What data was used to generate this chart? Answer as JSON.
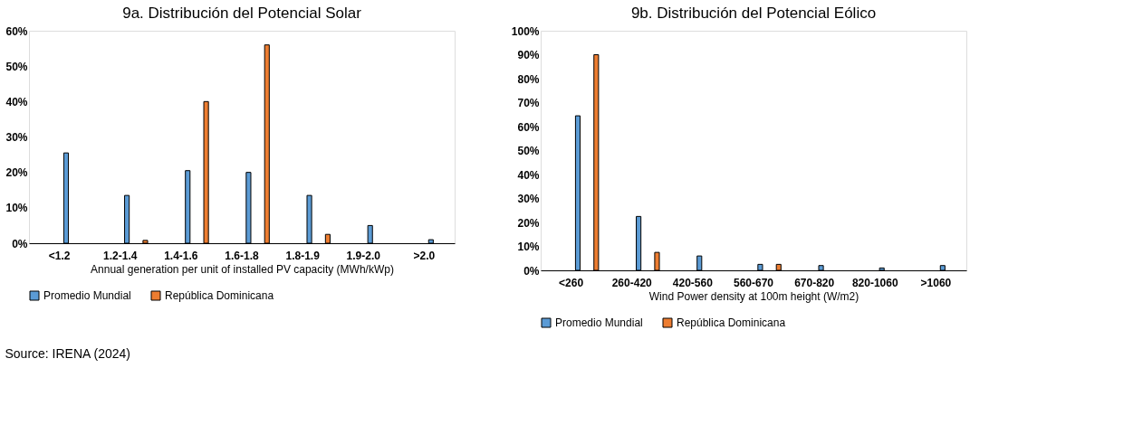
{
  "chart_data": [
    {
      "type": "bar",
      "title": "9a. Distribución del Potencial Solar",
      "xlabel": "Annual generation per unit of installed PV capacity (MWh/kWp)",
      "categories": [
        "<1.2",
        "1.2-1.4",
        "1.4-1.6",
        "1.6-1.8",
        "1.8-1.9",
        "1.9-2.0",
        ">2.0"
      ],
      "series": [
        {
          "name": "Promedio Mundial",
          "color": "#5b9bd5",
          "values": [
            25.5,
            13.5,
            20.5,
            20,
            13.5,
            5,
            1
          ]
        },
        {
          "name": "República Dominicana",
          "color": "#ed7d31",
          "values": [
            null,
            0.8,
            40,
            56,
            2.5,
            null,
            null
          ]
        }
      ],
      "ylim": [
        0,
        60
      ],
      "yticks": [
        {
          "value": 0,
          "label": "0%"
        },
        {
          "value": 10,
          "label": "10%"
        },
        {
          "value": 20,
          "label": "20%"
        },
        {
          "value": 30,
          "label": "30%"
        },
        {
          "value": 40,
          "label": "40%"
        },
        {
          "value": 50,
          "label": "50%"
        },
        {
          "value": 60,
          "label": "60%"
        }
      ],
      "grid": false,
      "legend": "bottom",
      "annotations": [
        "Source: IRENA (2024)"
      ]
    },
    {
      "type": "bar",
      "title": "9b. Distribución del Potencial Eólico",
      "xlabel": "Wind Power density at 100m height (W/m2)",
      "categories": [
        "<260",
        "260-420",
        "420-560",
        "560-670",
        "670-820",
        "820-1060",
        ">1060"
      ],
      "series": [
        {
          "name": "Promedio Mundial",
          "color": "#5b9bd5",
          "values": [
            64.5,
            22.5,
            6,
            2.5,
            2,
            1,
            2
          ]
        },
        {
          "name": "República Dominicana",
          "color": "#ed7d31",
          "values": [
            90,
            7.5,
            null,
            2.5,
            null,
            null,
            null
          ]
        }
      ],
      "ylim": [
        0,
        100
      ],
      "yticks": [
        {
          "value": 0,
          "label": "0%"
        },
        {
          "value": 10,
          "label": "10%"
        },
        {
          "value": 20,
          "label": "20%"
        },
        {
          "value": 30,
          "label": "30%"
        },
        {
          "value": 40,
          "label": "40%"
        },
        {
          "value": 50,
          "label": "50%"
        },
        {
          "value": 60,
          "label": "60%"
        },
        {
          "value": 70,
          "label": "70%"
        },
        {
          "value": 80,
          "label": "80%"
        },
        {
          "value": 90,
          "label": "90%"
        },
        {
          "value": 100,
          "label": "100%"
        }
      ],
      "grid": false,
      "legend": "bottom"
    }
  ]
}
